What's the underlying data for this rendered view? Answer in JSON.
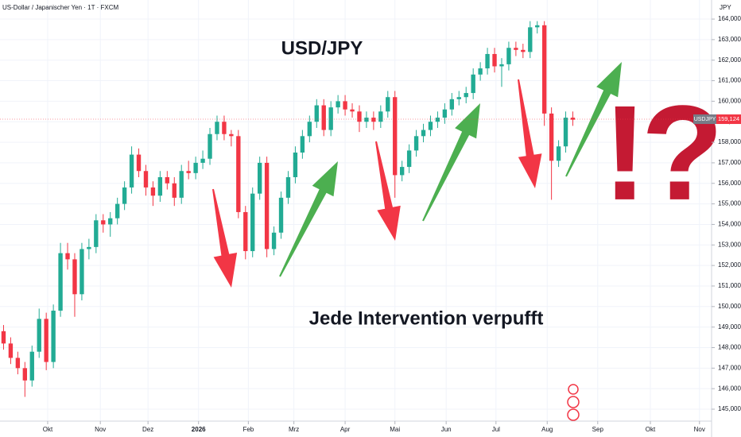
{
  "chart_data": {
    "type": "candlestick",
    "title": "US-Dollar / Japanischer Yen · 1T · FXCM",
    "axis_unit": "JPY",
    "annotations": [
      "USD/JPY",
      "Jede Intervention verpufft",
      "!?"
    ],
    "grid": true,
    "up_color": "#22ab94",
    "down_color": "#f23645",
    "x": [
      0,
      1,
      2,
      3,
      4,
      5,
      6,
      7,
      8,
      9,
      10,
      11,
      12,
      13,
      14,
      15,
      16,
      17,
      18,
      19,
      20,
      21,
      22,
      23,
      24,
      25,
      26,
      27,
      28,
      29,
      30,
      31,
      32,
      33,
      34,
      35,
      36,
      37,
      38,
      39,
      40,
      41,
      42,
      43,
      44,
      45,
      46,
      47,
      48,
      49,
      50,
      51,
      52,
      53,
      54,
      55,
      56,
      57,
      58,
      59,
      60,
      61,
      62,
      63,
      64,
      65,
      66,
      67,
      68,
      69,
      70,
      71,
      72,
      73,
      74,
      75,
      76,
      77,
      78,
      79,
      80
    ],
    "series": [
      {
        "name": "USDJPY",
        "open": [
          148.8,
          148.2,
          147.5,
          147.0,
          146.4,
          147.8,
          149.4,
          147.3,
          149.8,
          152.6,
          152.3,
          150.6,
          152.8,
          152.9,
          154.2,
          154.0,
          154.3,
          155.0,
          155.8,
          157.4,
          156.6,
          155.8,
          155.4,
          156.3,
          156.0,
          155.3,
          156.6,
          156.5,
          157.0,
          157.2,
          158.4,
          159.0,
          158.4,
          158.3,
          154.6,
          152.7,
          155.5,
          157.0,
          152.8,
          153.6,
          155.3,
          156.3,
          157.5,
          158.3,
          159.0,
          159.8,
          158.6,
          159.7,
          160.0,
          159.6,
          159.5,
          159.0,
          159.2,
          159.0,
          159.5,
          160.2,
          156.4,
          156.8,
          157.6,
          158.3,
          158.6,
          159.0,
          159.2,
          159.6,
          160.1,
          160.2,
          160.4,
          161.3,
          161.6,
          162.3,
          161.7,
          161.8,
          162.6,
          162.5,
          162.4,
          163.6,
          163.7,
          159.4,
          157.1,
          157.8,
          159.2
        ],
        "high": [
          149.1,
          148.5,
          147.8,
          147.3,
          148.1,
          149.9,
          149.7,
          150.1,
          153.1,
          153.1,
          152.6,
          153.1,
          153.3,
          154.5,
          154.5,
          154.6,
          155.3,
          156.1,
          157.8,
          157.7,
          156.9,
          156.1,
          156.6,
          156.6,
          156.3,
          156.9,
          157.1,
          157.3,
          157.6,
          158.7,
          159.3,
          159.3,
          158.6,
          158.6,
          154.9,
          155.8,
          157.3,
          157.3,
          153.9,
          155.6,
          156.6,
          157.8,
          158.6,
          159.3,
          160.1,
          160.1,
          160.0,
          160.3,
          160.3,
          159.9,
          159.8,
          159.5,
          159.5,
          159.8,
          160.5,
          160.5,
          157.1,
          157.9,
          158.6,
          158.9,
          159.3,
          159.5,
          159.9,
          160.4,
          160.5,
          160.7,
          161.6,
          161.9,
          162.6,
          162.6,
          162.1,
          162.9,
          162.9,
          162.8,
          163.9,
          163.9,
          163.9,
          159.7,
          158.1,
          159.5,
          159.5
        ],
        "low": [
          147.9,
          147.2,
          146.7,
          145.6,
          146.1,
          147.5,
          146.9,
          147.0,
          149.5,
          151.8,
          149.5,
          150.3,
          152.3,
          152.6,
          153.6,
          153.4,
          154.0,
          154.7,
          155.5,
          156.3,
          155.4,
          154.9,
          155.1,
          155.7,
          154.9,
          155.0,
          156.2,
          156.2,
          156.7,
          156.9,
          158.1,
          158.1,
          157.8,
          154.3,
          152.3,
          152.4,
          155.2,
          152.4,
          152.5,
          153.3,
          155.0,
          156.0,
          157.2,
          158.0,
          158.7,
          158.3,
          158.3,
          159.4,
          159.3,
          159.2,
          158.5,
          158.7,
          158.6,
          158.7,
          159.2,
          155.3,
          156.1,
          156.5,
          157.3,
          158.0,
          158.3,
          158.7,
          158.9,
          159.3,
          159.8,
          159.9,
          160.1,
          161.0,
          161.3,
          161.4,
          160.7,
          161.5,
          162.2,
          162.1,
          162.1,
          163.3,
          158.8,
          155.2,
          156.8,
          157.5,
          158.8
        ],
        "close": [
          148.2,
          147.5,
          147.0,
          146.4,
          147.8,
          149.4,
          147.3,
          149.8,
          152.6,
          152.3,
          150.6,
          152.8,
          152.9,
          154.2,
          154.0,
          154.3,
          155.0,
          155.8,
          157.4,
          156.6,
          155.8,
          155.4,
          156.3,
          156.0,
          155.3,
          156.6,
          156.5,
          157.0,
          157.2,
          158.4,
          159.0,
          158.4,
          158.3,
          154.6,
          152.7,
          155.5,
          157.0,
          152.8,
          153.6,
          155.3,
          156.3,
          157.5,
          158.3,
          159.0,
          159.8,
          158.6,
          159.7,
          160.0,
          159.6,
          159.5,
          159.0,
          159.2,
          159.0,
          159.5,
          160.2,
          156.4,
          156.8,
          157.6,
          158.3,
          158.6,
          159.0,
          159.2,
          159.6,
          160.1,
          160.2,
          160.4,
          161.3,
          161.6,
          162.3,
          161.7,
          161.8,
          162.6,
          162.5,
          162.4,
          163.6,
          163.7,
          159.4,
          157.1,
          157.8,
          159.2,
          159.1
        ],
        "last_price": {
          "value": 159.124,
          "label": "159,124"
        }
      }
    ],
    "xlim": [
      -0.5,
      99.5
    ],
    "xticks": [
      {
        "value": 6.2,
        "label": "Okt"
      },
      {
        "value": 13.6,
        "label": "Nov"
      },
      {
        "value": 20.3,
        "label": "Dez"
      },
      {
        "value": 27.4,
        "label": "2026"
      },
      {
        "value": 34.4,
        "label": "Feb"
      },
      {
        "value": 40.8,
        "label": "Mrz"
      },
      {
        "value": 48.0,
        "label": "Apr"
      },
      {
        "value": 55.0,
        "label": "Mai"
      },
      {
        "value": 62.2,
        "label": "Jun"
      },
      {
        "value": 69.2,
        "label": "Jul"
      },
      {
        "value": 76.4,
        "label": "Aug"
      },
      {
        "value": 83.5,
        "label": "Sep"
      },
      {
        "value": 90.9,
        "label": "Okt"
      },
      {
        "value": 97.8,
        "label": "Nov"
      }
    ],
    "ylim": [
      144.42,
      164.93
    ],
    "yticks": [
      {
        "value": 145,
        "label": "145,000"
      },
      {
        "value": 146,
        "label": "146,000"
      },
      {
        "value": 147,
        "label": "147,000"
      },
      {
        "value": 148,
        "label": "148,000"
      },
      {
        "value": 149,
        "label": "149,000"
      },
      {
        "value": 150,
        "label": "150,000"
      },
      {
        "value": 151,
        "label": "151,000"
      },
      {
        "value": 152,
        "label": "152,000"
      },
      {
        "value": 153,
        "label": "153,000"
      },
      {
        "value": 154,
        "label": "154,000"
      },
      {
        "value": 155,
        "label": "155,000"
      },
      {
        "value": 156,
        "label": "156,000"
      },
      {
        "value": 157,
        "label": "157,000"
      },
      {
        "value": 158,
        "label": "158,000"
      },
      {
        "value": 159,
        "label": "159,000"
      },
      {
        "value": 160,
        "label": "160,000"
      },
      {
        "value": 161,
        "label": "161,000"
      },
      {
        "value": 162,
        "label": "162,000"
      },
      {
        "value": 163,
        "label": "163,000"
      },
      {
        "value": 164,
        "label": "164,000"
      }
    ]
  }
}
